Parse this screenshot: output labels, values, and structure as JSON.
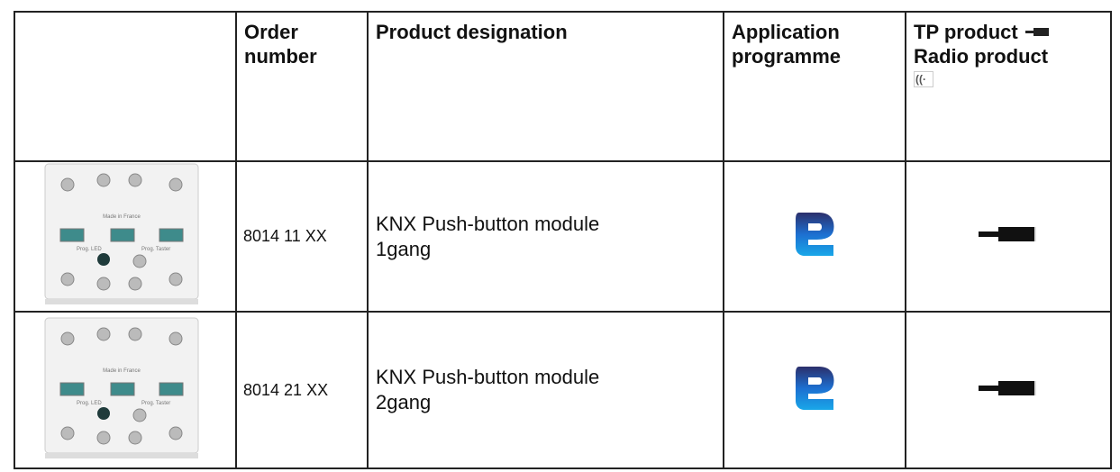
{
  "table": {
    "header": [
      "Order number",
      "Product designation",
      "Application programme",
      "TP product",
      "Radio product"
    ],
    "rows": [
      {
        "order_number": "8014 11 XX",
        "designation": "KNX Push-button module 1gang",
        "image_labels": [
          "Made in France",
          "Prog. LED",
          "Prog. Taster"
        ]
      },
      {
        "order_number": "8014 21 XX",
        "designation": "KNX Push-button module 2gang",
        "image_labels": [
          "Made in France",
          "Prog. LED",
          "Prog. Taster"
        ]
      }
    ]
  }
}
